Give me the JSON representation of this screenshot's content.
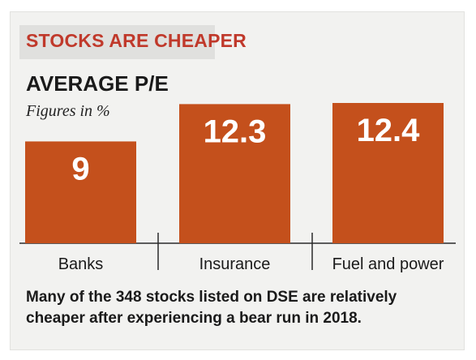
{
  "header": {
    "title": "STOCKS ARE CHEAPER"
  },
  "chart_data": {
    "type": "bar",
    "title": "AVERAGE P/E",
    "subtitle": "Figures in %",
    "categories": [
      "Banks",
      "Insurance",
      "Fuel and power"
    ],
    "values": [
      9,
      12.3,
      12.4
    ],
    "value_labels": [
      "9",
      "12.3",
      "12.4"
    ],
    "ylim": [
      0,
      12.4
    ],
    "bar_color": "#c4501c",
    "grid": false,
    "legend": "none"
  },
  "caption": "Many of the 348 stocks listed on DSE are relatively cheaper after experiencing a bear run in 2018."
}
